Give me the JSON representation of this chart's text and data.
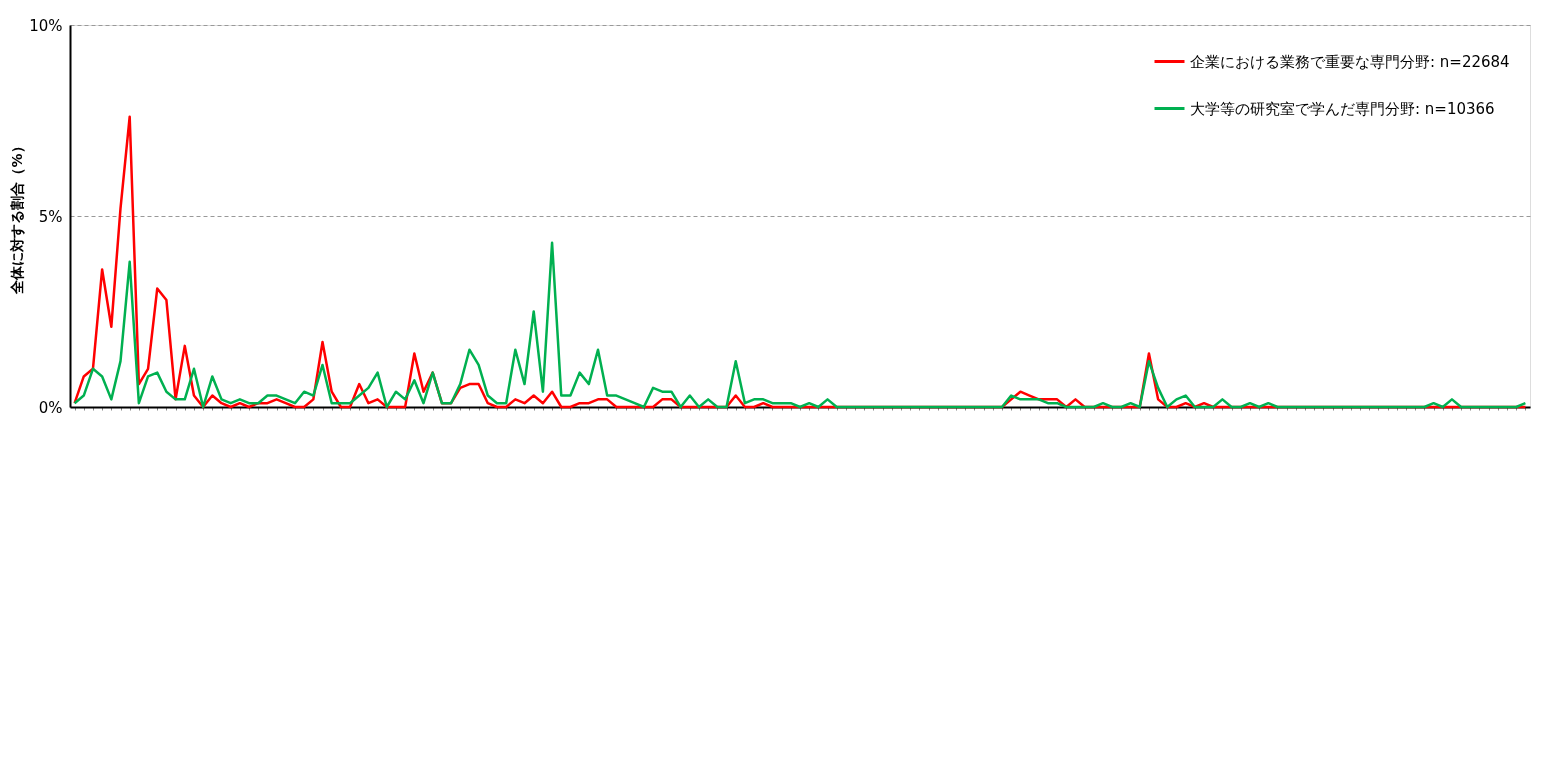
{
  "chart_data": {
    "type": "line",
    "ylabel": "全体に対する割合（%）",
    "categories": [
      null,
      null,
      null,
      null,
      null,
      null,
      null,
      null,
      null,
      null,
      null,
      null,
      null,
      null,
      null,
      null,
      null,
      null,
      null,
      null,
      null,
      null,
      null,
      null,
      null,
      null,
      null,
      null,
      null,
      null,
      null,
      null,
      null,
      null,
      null,
      null,
      null,
      null,
      null,
      null,
      null,
      null,
      null,
      null,
      null,
      null,
      null,
      null,
      null,
      null,
      null,
      null,
      null,
      null,
      null,
      null,
      null,
      null,
      null,
      null,
      null,
      null,
      null,
      null,
      null,
      null,
      null,
      null,
      null,
      null,
      null,
      null,
      null,
      null,
      null,
      null,
      null,
      null,
      null,
      null,
      null,
      null,
      null,
      null,
      null,
      null,
      null,
      null,
      null,
      null,
      null,
      null,
      null,
      null,
      null,
      null,
      null,
      null,
      null,
      null,
      null,
      null,
      null,
      null,
      null,
      null,
      null,
      null,
      null,
      null,
      null,
      null,
      null,
      null,
      null,
      null,
      null,
      null,
      null,
      null,
      null,
      null,
      null,
      null,
      null,
      null,
      null,
      null,
      null,
      null,
      null,
      null,
      null,
      null,
      null,
      null,
      null,
      null,
      null,
      null,
      null,
      null,
      null,
      null,
      null,
      null,
      null,
      null,
      null,
      null,
      null,
      null,
      null,
      null,
      null,
      null,
      null,
      null,
      null
    ],
    "series": [
      {
        "name": "企業における業務で重要な専門分野: n=22684",
        "color": "#ff0000",
        "values": [
          0.1,
          0.8,
          1.0,
          3.6,
          2.1,
          5.2,
          7.6,
          0.6,
          1.0,
          3.1,
          2.8,
          0.2,
          1.6,
          0.3,
          0,
          0.3,
          0.1,
          0,
          0.1,
          0,
          0.1,
          0.1,
          0.2,
          0.1,
          0,
          0,
          0.2,
          1.7,
          0.4,
          0,
          0,
          0.6,
          0.1,
          0.2,
          0,
          0,
          0,
          1.4,
          0.4,
          0.9,
          0.1,
          0.1,
          0.5,
          0.6,
          0.6,
          0.1,
          0,
          0,
          0.2,
          0.1,
          0.3,
          0.1,
          0.4,
          0,
          0,
          0.1,
          0.1,
          0.2,
          0.2,
          0,
          0,
          0,
          0,
          0,
          0.2,
          0.2,
          0,
          0,
          0,
          0,
          0,
          0,
          0.3,
          0,
          0,
          0.1,
          0,
          0,
          0,
          0,
          0,
          0,
          0,
          0,
          0,
          0,
          0,
          0,
          0,
          0,
          0,
          0,
          0,
          0,
          0,
          0,
          0,
          0,
          0,
          0,
          0,
          0,
          0.2,
          0.4,
          0.3,
          0.2,
          0.2,
          0.2,
          0,
          0.2,
          0,
          0,
          0,
          0,
          0,
          0,
          0,
          1.4,
          0.2,
          0,
          0,
          0.1,
          0,
          0.1,
          0,
          0,
          0,
          0,
          0,
          0,
          0,
          0,
          0,
          0,
          0,
          0,
          0,
          0,
          0,
          0,
          0,
          0,
          0,
          0,
          0,
          0,
          0,
          0,
          0,
          0,
          0,
          0,
          0,
          0,
          0,
          0,
          0,
          0,
          0
        ]
      },
      {
        "name": "大学等の研究室で学んだ専門分野: n=10366",
        "color": "#00b050",
        "values": [
          0.1,
          0.3,
          1.0,
          0.8,
          0.2,
          1.2,
          3.8,
          0.1,
          0.8,
          0.9,
          0.4,
          0.2,
          0.2,
          1.0,
          0,
          0.8,
          0.2,
          0.1,
          0.2,
          0.1,
          0.1,
          0.3,
          0.3,
          0.2,
          0.1,
          0.4,
          0.3,
          1.1,
          0.1,
          0.1,
          0.1,
          0.3,
          0.5,
          0.9,
          0,
          0.4,
          0.2,
          0.7,
          0.1,
          0.9,
          0.1,
          0.1,
          0.6,
          1.5,
          1.1,
          0.3,
          0.1,
          0.1,
          1.5,
          0.6,
          2.5,
          0.4,
          4.3,
          0.3,
          0.3,
          0.9,
          0.6,
          1.5,
          0.3,
          0.3,
          0.2,
          0.1,
          0,
          0.5,
          0.4,
          0.4,
          0,
          0.3,
          0,
          0.2,
          0,
          0,
          1.2,
          0.1,
          0.2,
          0.2,
          0.1,
          0.1,
          0.1,
          0,
          0.1,
          0,
          0.2,
          0,
          0,
          0,
          0,
          0,
          0,
          0,
          0,
          0,
          0,
          0,
          0,
          0,
          0,
          0,
          0,
          0,
          0,
          0,
          0.3,
          0.2,
          0.2,
          0.2,
          0.1,
          0.1,
          0,
          0,
          0,
          0,
          0.1,
          0,
          0,
          0.1,
          0,
          1.2,
          0.5,
          0,
          0.2,
          0.3,
          0,
          0,
          0,
          0.2,
          0,
          0,
          0.1,
          0,
          0.1,
          0,
          0,
          0,
          0,
          0,
          0,
          0,
          0,
          0,
          0,
          0,
          0,
          0,
          0,
          0,
          0,
          0,
          0.1,
          0,
          0.2,
          0,
          0,
          0,
          0,
          0,
          0,
          0,
          0.1
        ]
      }
    ],
    "ylim": [
      0,
      10
    ],
    "yticks": [
      {
        "value": 0,
        "label": "0%"
      },
      {
        "value": 5,
        "label": "5%"
      },
      {
        "value": 10,
        "label": "10%"
      }
    ],
    "grid": "y",
    "legend": "top right",
    "marker": "none",
    "line_style": "solid"
  }
}
